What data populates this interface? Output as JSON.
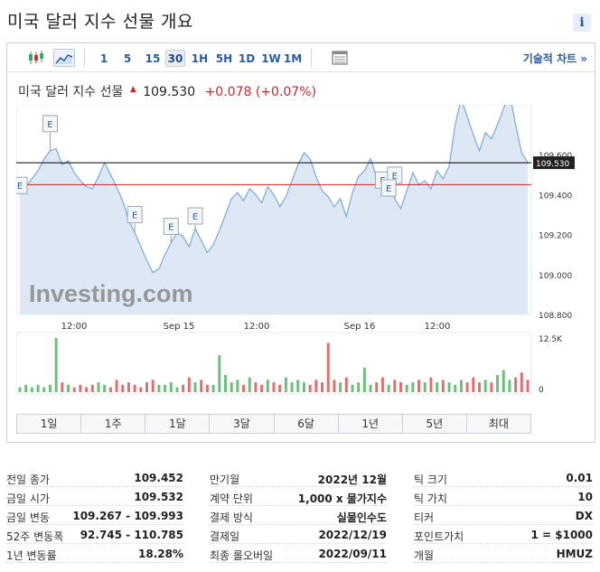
{
  "page": {
    "title": "미국 달러 지수 선물 개요"
  },
  "toolbar": {
    "timeframes": [
      "1",
      "5",
      "15",
      "30",
      "1H",
      "5H",
      "1D",
      "1W",
      "1M"
    ],
    "selected_timeframe": "30",
    "technical_chart_label": "기술적 차트 »"
  },
  "quote": {
    "name": "미국 달러 지수 선물",
    "price": "109.530",
    "change": "+0.078 (+0.07%)",
    "colors": {
      "down": "#d2232a"
    }
  },
  "chart_data": {
    "type": "area",
    "watermark": "Investing.com",
    "x_labels": [
      "12:00",
      "Sep 15",
      "12:00",
      "Sep 16",
      "12:00"
    ],
    "y_labels": [
      "109.600",
      "109.400",
      "109.200",
      "109.000",
      "108.800"
    ],
    "ylim": [
      108.8,
      109.85
    ],
    "current_price_label": "109.530",
    "reference_line": 109.45,
    "volume_labels": [
      "12.5K",
      "0"
    ],
    "event_markers": [
      "E",
      "E",
      "E",
      "E",
      "E",
      "E",
      "E",
      "E"
    ],
    "series": [
      {
        "values": [
          109.41,
          109.44,
          109.48,
          109.52,
          109.58,
          109.62,
          109.63,
          109.55,
          109.57,
          109.51,
          109.47,
          109.44,
          109.43,
          109.49,
          109.56,
          109.5,
          109.44,
          109.37,
          109.27,
          109.21,
          109.14,
          109.07,
          109.01,
          109.03,
          109.1,
          109.16,
          109.21,
          109.19,
          109.14,
          109.23,
          109.17,
          109.11,
          109.15,
          109.22,
          109.3,
          109.38,
          109.41,
          109.37,
          109.43,
          109.4,
          109.36,
          109.44,
          109.4,
          109.34,
          109.39,
          109.47,
          109.55,
          109.61,
          109.58,
          109.49,
          109.42,
          109.39,
          109.34,
          109.38,
          109.29,
          109.41,
          109.49,
          109.52,
          109.58,
          109.49,
          109.41,
          109.47,
          109.38,
          109.33,
          109.42,
          109.51,
          109.45,
          109.47,
          109.43,
          109.52,
          109.48,
          109.54,
          109.75,
          109.88,
          109.79,
          109.7,
          109.62,
          109.71,
          109.68,
          109.75,
          109.83,
          109.91,
          109.75,
          109.61,
          109.56
        ],
        "volumes": [
          0.02,
          0.03,
          0.02,
          0.03,
          0.02,
          0.03,
          0.22,
          0.04,
          0.03,
          0.02,
          0.03,
          0.02,
          0.03,
          0.04,
          0.03,
          0.02,
          0.05,
          0.03,
          0.04,
          0.03,
          0.02,
          0.04,
          0.05,
          0.03,
          0.03,
          0.04,
          0.02,
          0.03,
          0.06,
          0.04,
          0.05,
          0.03,
          0.03,
          0.15,
          0.07,
          0.04,
          0.05,
          0.03,
          0.06,
          0.04,
          0.03,
          0.05,
          0.04,
          0.03,
          0.06,
          0.04,
          0.05,
          0.04,
          0.03,
          0.05,
          0.04,
          0.2,
          0.05,
          0.04,
          0.06,
          0.03,
          0.04,
          0.1,
          0.03,
          0.04,
          0.06,
          0.03,
          0.05,
          0.04,
          0.03,
          0.04,
          0.05,
          0.04,
          0.06,
          0.04,
          0.05,
          0.04,
          0.03,
          0.05,
          0.04,
          0.06,
          0.04,
          0.05,
          0.04,
          0.07,
          0.09,
          0.05,
          0.06,
          0.08,
          0.05
        ],
        "color": "#7aa9d9"
      }
    ],
    "colors": {
      "area": "#dde8f4",
      "line": "#7aa9d9",
      "volume_up": "#6cc17a",
      "volume_down": "#e07070",
      "price_line": "#000000",
      "red_line": "#c02020"
    }
  },
  "ranges": [
    "1일",
    "1주",
    "1달",
    "3달",
    "6달",
    "1년",
    "5년",
    "최대"
  ],
  "stats": {
    "col1": [
      {
        "label": "전일 종가",
        "value": "109.452"
      },
      {
        "label": "금일 시가",
        "value": "109.532"
      },
      {
        "label": "금일 변동",
        "value": "109.267 - 109.993"
      },
      {
        "label": "52주 변동폭",
        "value": "92.745 - 110.785"
      },
      {
        "label": "1년 변동률",
        "value": "18.28%"
      }
    ],
    "col2": [
      {
        "label": "만기월",
        "value": "2022년 12월"
      },
      {
        "label": "계약 단위",
        "value": "1,000 x 물가지수"
      },
      {
        "label": "결제 방식",
        "value": "실물인수도"
      },
      {
        "label": "결제일",
        "value": "2022/12/19"
      },
      {
        "label": "최종 롤오버일",
        "value": "2022/09/11"
      }
    ],
    "col3": [
      {
        "label": "틱 크기",
        "value": "0.01"
      },
      {
        "label": "틱 가치",
        "value": "10"
      },
      {
        "label": "티커",
        "value": "DX"
      },
      {
        "label": "포인트가치",
        "value": "1 = $1000"
      },
      {
        "label": "개월",
        "value": "HMUZ"
      }
    ]
  }
}
